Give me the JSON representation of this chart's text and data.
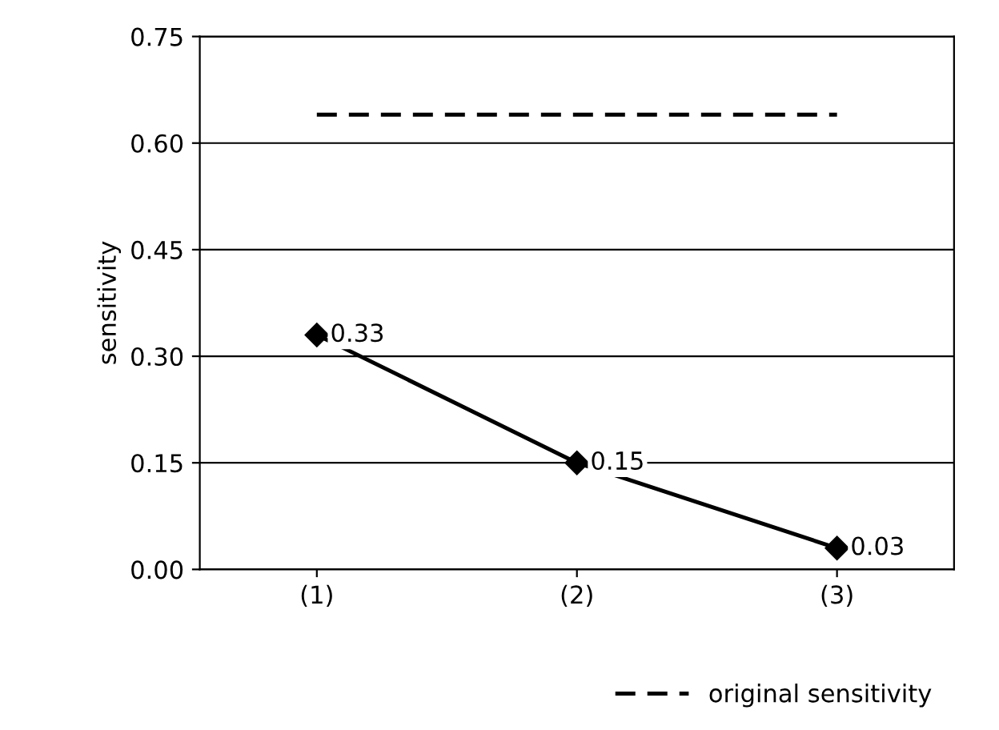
{
  "chart_data": {
    "type": "line",
    "ylabel": "sensitivity",
    "categories": [
      "(1)",
      "(2)",
      "(3)"
    ],
    "series": [
      {
        "color": "#000000",
        "values": [
          0.33,
          0.15,
          0.03
        ],
        "marker": "diamond",
        "line_style": "solid",
        "value_labels": [
          "0.33",
          "0.15",
          "0.03"
        ]
      },
      {
        "name": "original sensitivity",
        "color": "#000000",
        "values": [
          0.64,
          0.64,
          0.64
        ],
        "marker": "none",
        "line_style": "dashed"
      }
    ],
    "ylim": [
      0,
      0.75
    ],
    "yticks": [
      {
        "value": 0,
        "label": "0.00"
      },
      {
        "value": 0.15,
        "label": "0.15"
      },
      {
        "value": 0.3,
        "label": "0.30"
      },
      {
        "value": 0.45,
        "label": "0.45"
      },
      {
        "value": 0.6,
        "label": "0.60"
      },
      {
        "value": 0.75,
        "label": "0.75"
      }
    ],
    "grid": "y",
    "legend": "bottom right"
  }
}
